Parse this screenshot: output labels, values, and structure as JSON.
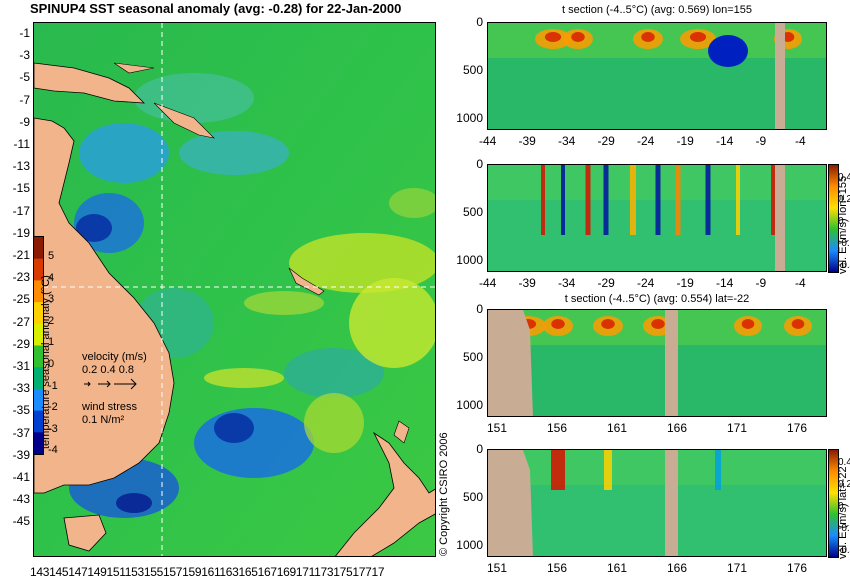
{
  "map": {
    "title": "SPINUP4 SST seasonal anomaly (avg: -0.28) for 22-Jan-2000",
    "lat_labels": [
      "-1",
      "-3",
      "-5",
      "-7",
      "-9",
      "-11",
      "-13",
      "-15",
      "-17",
      "-19",
      "-21",
      "-23",
      "-25",
      "-27",
      "-29",
      "-31",
      "-33",
      "-35",
      "-37",
      "-39",
      "-41",
      "-43",
      "-45"
    ],
    "lon_labels": "14314514714915115315515715916116316516716917117317517717",
    "colorbar": {
      "title": "temperature seasonal anomaly (°C)",
      "ticks": [
        "5",
        "4",
        "3",
        "2",
        "1",
        "0",
        "-1",
        "-2",
        "-3",
        "-4"
      ],
      "colors": [
        "#8b1a00",
        "#d83a00",
        "#ff8c00",
        "#ffd000",
        "#d8f000",
        "#30c030",
        "#00b070",
        "#1a8cff",
        "#0040d0",
        "#00008a"
      ]
    },
    "velocity_legend": {
      "title": "velocity (m/s)",
      "scale": "0.2 0.4 0.8"
    },
    "wind_legend": {
      "title": "wind stress",
      "scale": "0.1 N/m²"
    },
    "crosshair": {
      "lon": 155,
      "lat": -22
    }
  },
  "panels": [
    {
      "title": "t section (-4..5°C) (avg: 0.569) lon=155",
      "x_ticks": [
        "-44",
        "-39",
        "-34",
        "-29",
        "-24",
        "-19",
        "-14",
        "-9",
        "-4"
      ],
      "depth_ticks": [
        "0",
        "500",
        "1000"
      ],
      "side_label": "",
      "cb_ticks": []
    },
    {
      "title": "",
      "x_ticks": [
        "-44",
        "-39",
        "-34",
        "-29",
        "-24",
        "-19",
        "-14",
        "-9",
        "-4"
      ],
      "depth_ticks": [
        "0",
        "500",
        "1000"
      ],
      "side_label": "vel. E (m/s) lon=155",
      "cb_ticks": [
        "0.4",
        "0.2",
        "0",
        "-0.2",
        "-0.4"
      ]
    },
    {
      "title": "t section (-4..5°C) (avg: 0.554) lat=-22",
      "x_ticks": [
        "151",
        "156",
        "161",
        "166",
        "171",
        "176"
      ],
      "depth_ticks": [
        "0",
        "500",
        "1000"
      ],
      "side_label": "",
      "cb_ticks": []
    },
    {
      "title": "",
      "x_ticks": [
        "151",
        "156",
        "161",
        "166",
        "171",
        "176"
      ],
      "depth_ticks": [
        "0",
        "500",
        "1000"
      ],
      "side_label": "vel. E (m/s) lat=-22",
      "cb_ticks": [
        "0.4",
        "0.2",
        "0",
        "-0.2",
        "-0.4"
      ]
    }
  ],
  "copyright": "© Copyright CSIRO 2006",
  "colors": {
    "ocean": "#2fbf4a",
    "land": "#f2b48a",
    "section_land": "#c8ad94",
    "crosshair": "#ffffff"
  }
}
